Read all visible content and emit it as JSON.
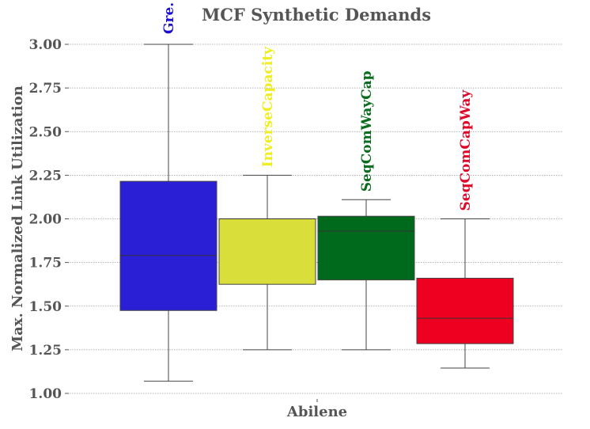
{
  "chart_data": {
    "type": "box",
    "title": "MCF Synthetic Demands",
    "xlabel": "",
    "ylabel": "Max. Normalized Link Utilization",
    "categories": [
      "Abilene"
    ],
    "ylim": [
      1.0,
      3.0
    ],
    "yticks": [
      "1.00",
      "1.25",
      "1.50",
      "1.75",
      "2.00",
      "2.25",
      "2.50",
      "2.75",
      "3.00"
    ],
    "grid": true,
    "series": [
      {
        "name": "Gre.",
        "color": "#2b1fd6",
        "whisker_low": 1.07,
        "q1": 1.475,
        "median": 1.79,
        "q3": 2.215,
        "whisker_high": 3.0
      },
      {
        "name": "InverseCapacity",
        "color": "#d9de3a",
        "whisker_low": 1.25,
        "q1": 1.625,
        "median": 2.0,
        "q3": 2.0,
        "whisker_high": 2.25
      },
      {
        "name": "SeqComWayCap",
        "color": "#006a1c",
        "whisker_low": 1.25,
        "q1": 1.65,
        "median": 1.93,
        "q3": 2.015,
        "whisker_high": 2.11
      },
      {
        "name": "SeqComCapWay",
        "color": "#ee0020",
        "whisker_low": 1.145,
        "q1": 1.285,
        "median": 1.43,
        "q3": 1.66,
        "whisker_high": 2.0
      }
    ],
    "label_colors": [
      "#1a0fcf",
      "#eeee22",
      "#0b6b1f",
      "#dd0a2a"
    ]
  },
  "xaxis": {
    "label": "Abilene"
  }
}
